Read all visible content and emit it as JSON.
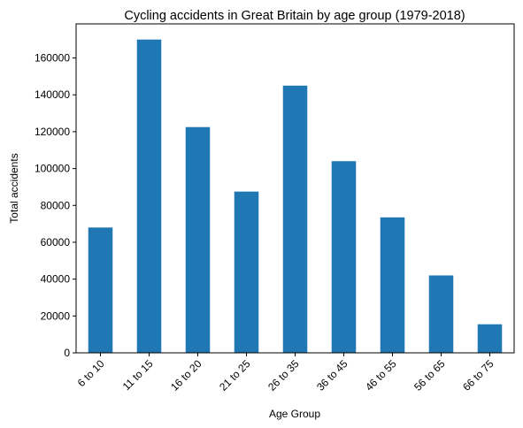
{
  "chart_data": {
    "type": "bar",
    "title": "Cycling accidents in Great Britain by age group (1979-2018)",
    "xlabel": "Age Group",
    "ylabel": "Total accidents",
    "categories": [
      "6 to 10",
      "11 to 15",
      "16 to 20",
      "21 to 25",
      "26 to 35",
      "36 to 45",
      "46 to 55",
      "56 to 65",
      "66 to 75"
    ],
    "values": [
      68000,
      170000,
      122500,
      87500,
      145000,
      104000,
      73500,
      42000,
      15500
    ],
    "yticks": [
      0,
      20000,
      40000,
      60000,
      80000,
      100000,
      120000,
      140000,
      160000
    ],
    "ylim": [
      0,
      178500
    ],
    "grid": false,
    "legend": "none",
    "bar_color": "#1f77b4"
  }
}
